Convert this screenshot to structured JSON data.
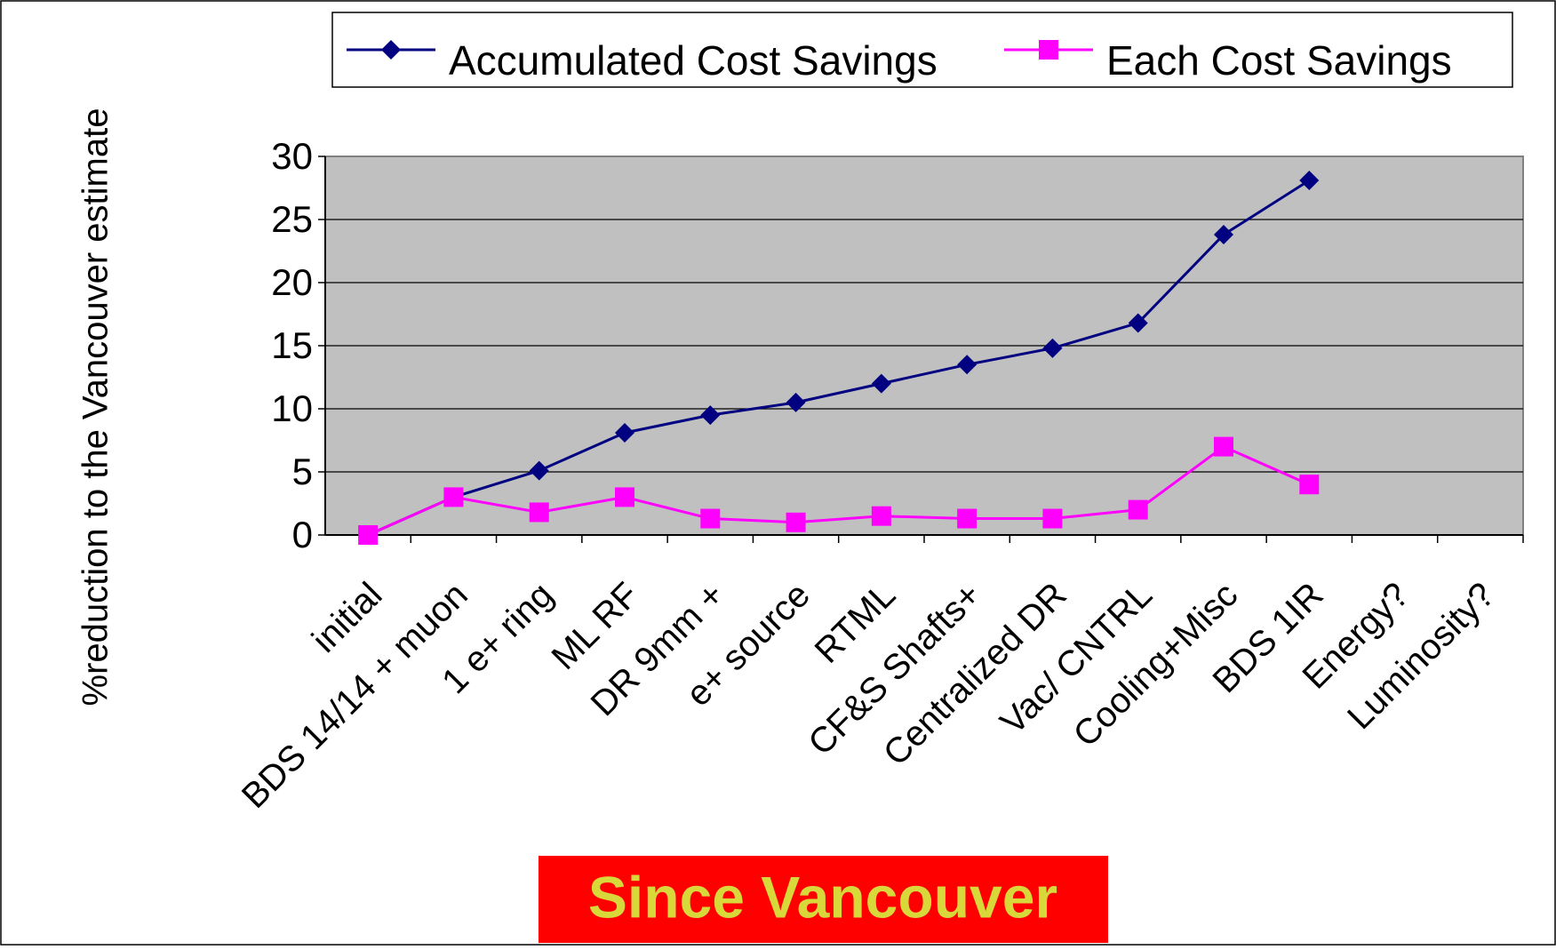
{
  "chart_data": {
    "type": "line",
    "y_label": "%reduction to the Vancouver estimate",
    "annotation": "Since Vancouver",
    "categories": [
      "initial",
      "BDS 14/14 + muon",
      "1 e+ ring",
      "ML RF",
      "DR 9mm +",
      "e+ source",
      "RTML",
      "CF&S Shafts+",
      "Centralized DR",
      "Vac/ CNTRL",
      "Cooling+Misc",
      "BDS 1IR",
      "Energy?",
      "Luminosity?"
    ],
    "series": [
      {
        "name": "Accumulated Cost Savings",
        "color": "#000080",
        "marker": "diamond",
        "values": [
          0,
          3,
          5.1,
          8.1,
          9.5,
          10.5,
          12,
          13.5,
          14.8,
          16.8,
          23.8,
          28.1,
          null,
          null
        ]
      },
      {
        "name": "Each Cost Savings",
        "color": "#ff00ff",
        "marker": "square",
        "values": [
          0,
          3,
          1.8,
          3,
          1.3,
          1,
          1.5,
          1.3,
          1.3,
          2,
          7,
          4,
          null,
          null
        ]
      }
    ],
    "ylim": [
      0,
      30
    ],
    "yticks": [
      0,
      5,
      10,
      15,
      20,
      25,
      30
    ],
    "grid": true,
    "plot_background": "#c0c0c0"
  }
}
